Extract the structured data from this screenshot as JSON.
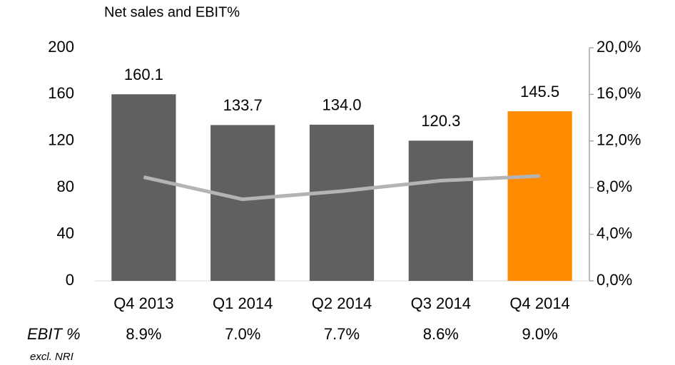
{
  "chart_data": {
    "type": "bar",
    "title": "Net sales and EBIT%",
    "categories": [
      "Q4 2013",
      "Q1 2014",
      "Q2 2014",
      "Q3 2014",
      "Q4 2014"
    ],
    "values": [
      160.1,
      133.7,
      134.0,
      120.3,
      145.5
    ],
    "value_labels": [
      "160.1",
      "133.7",
      "134.0",
      "120.3",
      "145.5"
    ],
    "colors": [
      "#606060",
      "#606060",
      "#606060",
      "#606060",
      "#ff8c00"
    ],
    "ylim": [
      0,
      200
    ],
    "yticks": [
      0,
      40,
      80,
      120,
      160,
      200
    ],
    "y2lim": [
      0,
      20
    ],
    "y2ticks": [
      {
        "value": 0,
        "label": "0,0%"
      },
      {
        "value": 4,
        "label": "4,0%"
      },
      {
        "value": 8,
        "label": "8,0%"
      },
      {
        "value": 12,
        "label": "12,0%"
      },
      {
        "value": 16,
        "label": "16,0%"
      },
      {
        "value": 20,
        "label": "20,0%"
      }
    ],
    "line": {
      "type": "line",
      "axis": "y2",
      "color": "#b4b4b4",
      "values": [
        8.9,
        7.0,
        7.7,
        8.6,
        9.0
      ],
      "value_labels": [
        "8.9%",
        "7.0%",
        "7.7%",
        "8.6%",
        "9.0%"
      ],
      "label": "EBIT %",
      "sublabel": "excl. NRI"
    }
  }
}
